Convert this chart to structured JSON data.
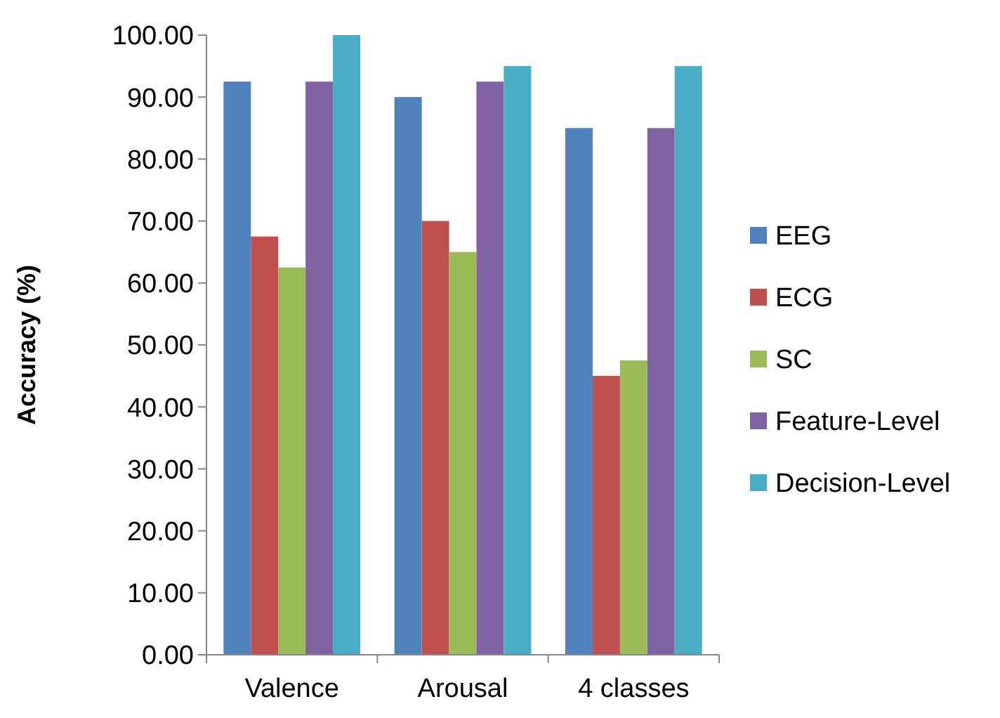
{
  "chart_data": {
    "type": "bar",
    "ylabel": "Accuracy (%)",
    "categories": [
      "Valence",
      "Arousal",
      "4 classes"
    ],
    "series": [
      {
        "name": "EEG",
        "color": "#4f81bd",
        "values": [
          92.5,
          90,
          85
        ]
      },
      {
        "name": "ECG",
        "color": "#c0504d",
        "values": [
          67.5,
          70,
          45
        ]
      },
      {
        "name": "SC",
        "color": "#9bbb59",
        "values": [
          62.5,
          65,
          47.5
        ]
      },
      {
        "name": "Feature-Level",
        "color": "#8064a2",
        "values": [
          92.5,
          92.5,
          85
        ]
      },
      {
        "name": "Decision-Level",
        "color": "#4bacc6",
        "values": [
          100,
          95,
          95
        ]
      }
    ],
    "ylim": [
      0,
      100
    ],
    "yticks": [
      {
        "value": 0,
        "label": "0.00"
      },
      {
        "value": 10,
        "label": "10.00"
      },
      {
        "value": 20,
        "label": "20.00"
      },
      {
        "value": 30,
        "label": "30.00"
      },
      {
        "value": 40,
        "label": "40.00"
      },
      {
        "value": 50,
        "label": "50.00"
      },
      {
        "value": 60,
        "label": "60.00"
      },
      {
        "value": 70,
        "label": "70.00"
      },
      {
        "value": 80,
        "label": "80.00"
      },
      {
        "value": 90,
        "label": "90.00"
      },
      {
        "value": 100,
        "label": "100.00"
      }
    ],
    "grid": false,
    "legend": "right"
  }
}
